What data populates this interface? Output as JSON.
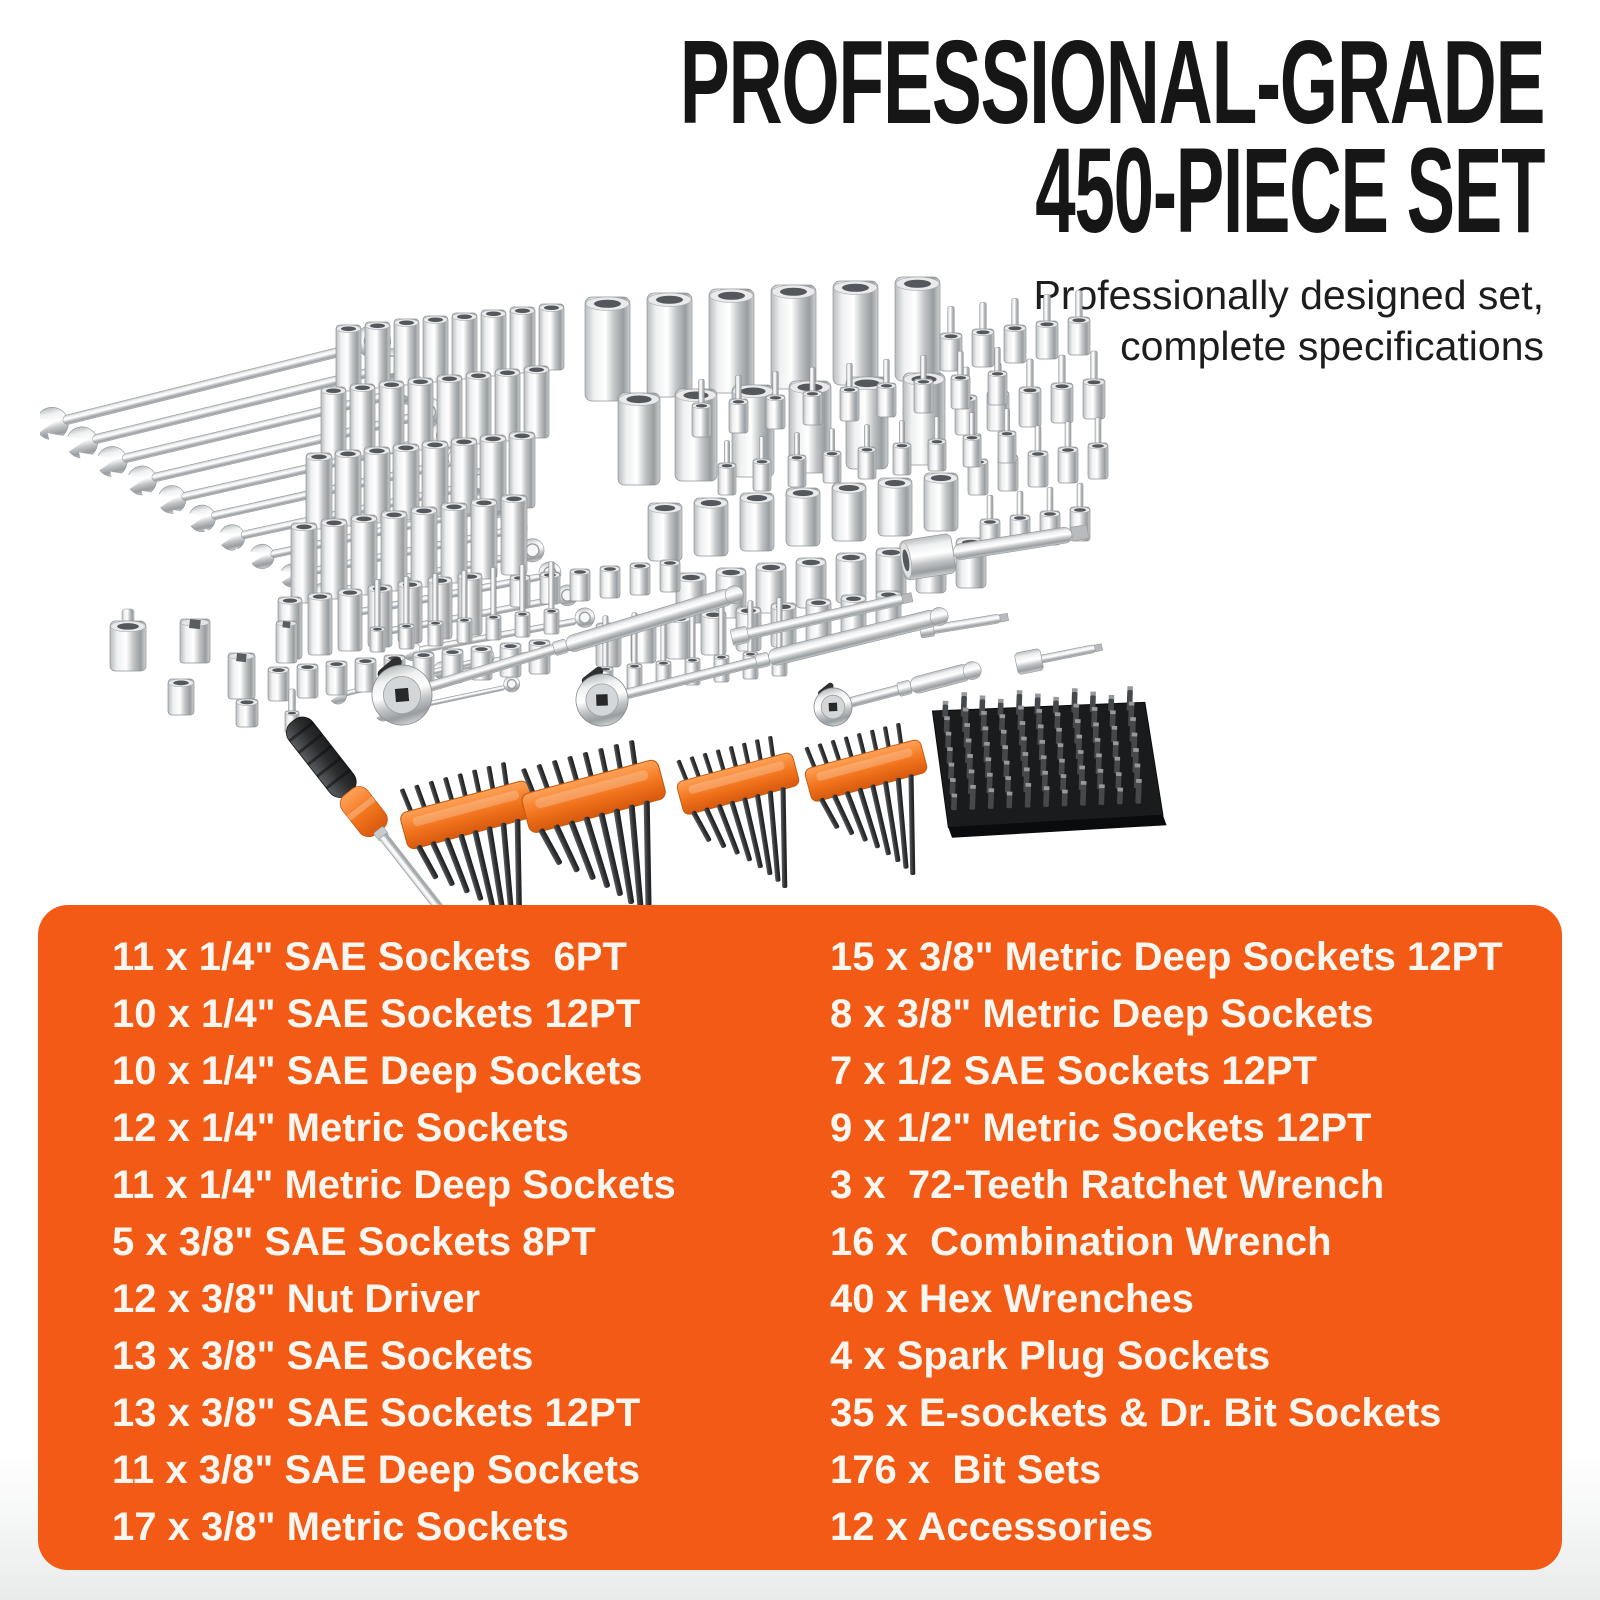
{
  "header": {
    "title_line1": "PROFESSIONAL-GRADE",
    "title_line2": "450-PIECE SET",
    "subtitle_line1": "Professionally designed set,",
    "subtitle_line2": "complete specifications",
    "title_color": "#161616"
  },
  "specs_panel": {
    "background_color": "#F25A16",
    "text_color": "#FBF6EF",
    "left_column": [
      "11 x 1/4\" SAE Sockets  6PT",
      "10 x 1/4\" SAE Sockets 12PT",
      "10 x 1/4\" SAE Deep Sockets",
      "12 x 1/4\" Metric Sockets",
      "11 x 1/4\" Metric Deep Sockets",
      "5 x 3/8\" SAE Sockets 8PT",
      "12 x 3/8\" Nut Driver",
      "13 x 3/8\" SAE Sockets",
      "13 x 3/8\" SAE Sockets 12PT",
      "11 x 3/8\" SAE Deep Sockets",
      "17 x 3/8\" Metric Sockets"
    ],
    "right_column": [
      "15 x 3/8\" Metric Deep Sockets 12PT",
      "8 x 3/8\" Metric Deep Sockets",
      "7 x 1/2 SAE Sockets 12PT",
      "9 x 1/2\" Metric Sockets 12PT",
      "3 x  72-Teeth Ratchet Wrench",
      "16 x  Combination Wrench",
      "40 x Hex Wrenches",
      "4 x Spark Plug Sockets",
      "35 x E-sockets & Dr. Bit Sockets",
      "176 x  Bit Sets",
      "12 x Accessories"
    ]
  }
}
